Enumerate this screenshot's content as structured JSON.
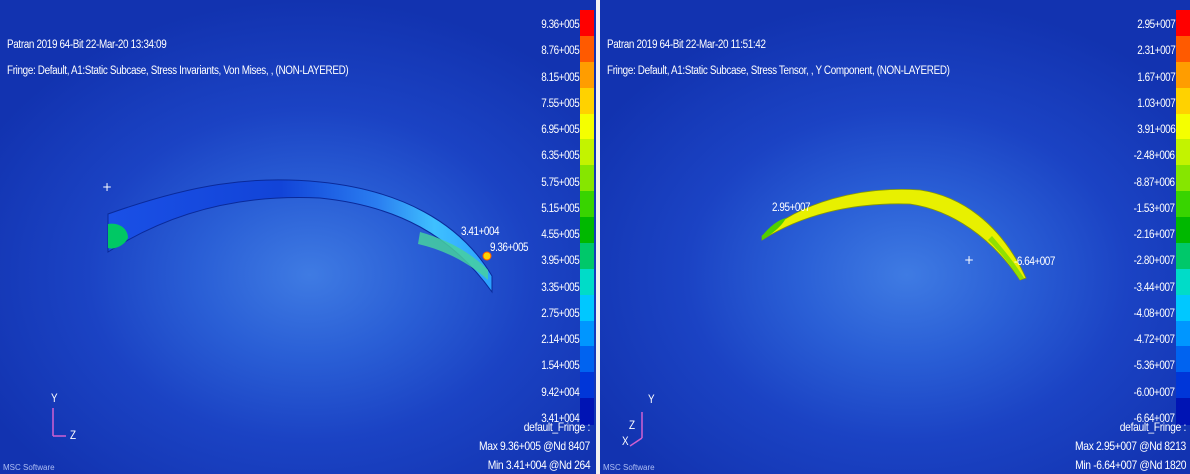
{
  "left": {
    "header1": "Patran 2019 64-Bit 22-Mar-20 13:34:09",
    "header2": "Fringe: Default, A1:Static Subcase, Stress Invariants, Von Mises, , (NON-LAYERED)",
    "scale": [
      "9.36+005",
      "8.76+005",
      "8.15+005",
      "7.55+005",
      "6.95+005",
      "6.35+005",
      "5.75+005",
      "5.15+005",
      "4.55+005",
      "3.95+005",
      "3.35+005",
      "2.75+005",
      "2.14+005",
      "1.54+005",
      "9.42+004",
      "3.41+004"
    ],
    "fringe_title": "default_Fringe :",
    "fringe_max": "Max 9.36+005 @Nd 8407",
    "fringe_min": "Min 3.41+004 @Nd 264",
    "label_min": "3.41+004",
    "label_max": "9.36+005",
    "axis_y": "Y",
    "axis_z": "Z",
    "logo": "MSC Software",
    "colors": [
      "#ff0000",
      "#ff5a00",
      "#ff9d00",
      "#ffd200",
      "#f5ff00",
      "#c3f300",
      "#86e600",
      "#38d400",
      "#00b800",
      "#00c86a",
      "#00dcc8",
      "#00c8ff",
      "#0096ff",
      "#0063f0",
      "#0036d8",
      "#0014b4"
    ]
  },
  "right": {
    "header1": "Patran 2019 64-Bit 22-Mar-20 11:51:42",
    "header2": "Fringe: Default, A1:Static Subcase, Stress Tensor, , Y Component, (NON-LAYERED)",
    "scale": [
      "2.95+007",
      "2.31+007",
      "1.67+007",
      "1.03+007",
      "3.91+006",
      "-2.48+006",
      "-8.87+006",
      "-1.53+007",
      "-2.16+007",
      "-2.80+007",
      "-3.44+007",
      "-4.08+007",
      "-4.72+007",
      "-5.36+007",
      "-6.00+007",
      "-6.64+007"
    ],
    "fringe_title": "default_Fringe :",
    "fringe_max": "Max 2.95+007 @Nd 8213",
    "fringe_min": "Min -6.64+007 @Nd 1820",
    "label_max": "2.95+007",
    "label_min": "-6.64+007",
    "axis_y": "Y",
    "axis_z": "Z",
    "axis_x": "X",
    "logo": "MSC Software",
    "colors": [
      "#ff0000",
      "#ff5a00",
      "#ff9d00",
      "#ffd200",
      "#f5ff00",
      "#c3f300",
      "#86e600",
      "#38d400",
      "#00b800",
      "#00c86a",
      "#00dcc8",
      "#00c8ff",
      "#0096ff",
      "#0063f0",
      "#0036d8",
      "#0014b4"
    ]
  }
}
